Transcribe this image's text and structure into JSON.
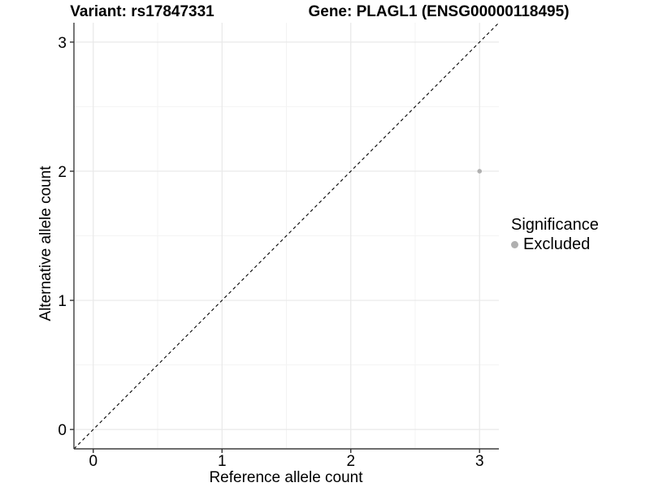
{
  "titles": {
    "left": "Variant: rs17847331",
    "right": "Gene: PLAGL1 (ENSG00000118495)"
  },
  "legend": {
    "title": "Significance",
    "items": [
      {
        "label": "Excluded",
        "color": "#b0b0b0"
      }
    ]
  },
  "chart_data": {
    "type": "scatter",
    "title": "Variant: rs17847331    Gene: PLAGL1 (ENSG00000118495)",
    "xlabel": "Reference allele count",
    "ylabel": "Alternative allele count",
    "xlim": [
      -0.15,
      3.15
    ],
    "ylim": [
      -0.15,
      3.15
    ],
    "xticks": [
      0,
      1,
      2,
      3
    ],
    "xtick_labels": [
      "0",
      "1",
      "2",
      "3"
    ],
    "yticks": [
      0,
      1,
      2,
      3
    ],
    "ytick_labels": [
      "0",
      "1",
      "2",
      "3"
    ],
    "grid": {
      "major": [
        0,
        1,
        2,
        3
      ],
      "minor": [
        0.5,
        1.5,
        2.5
      ],
      "major_color": "#e8e8e8",
      "minor_color": "#f3f3f3"
    },
    "points": [
      {
        "x": 3,
        "y": 2,
        "series": "Excluded"
      }
    ],
    "series": [
      {
        "name": "Excluded",
        "color": "#b0b0b0"
      }
    ],
    "identity_line": {
      "style": "dashed",
      "color": "#000000",
      "from": [
        -0.15,
        -0.15
      ],
      "to": [
        3.15,
        3.15
      ]
    },
    "axis_color": "#3d3d3d",
    "tick_color": "#333333",
    "text_color": "#000000",
    "legend_position": "right",
    "background": "#ffffff"
  }
}
